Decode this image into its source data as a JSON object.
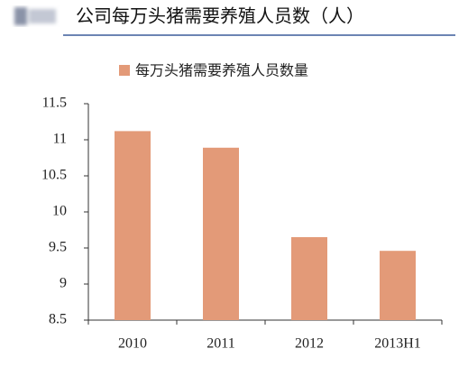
{
  "chart_data": {
    "type": "bar",
    "title": "公司每万头猪需要养殖人员数（人）",
    "categories": [
      "2010",
      "2011",
      "2012",
      "2013H1"
    ],
    "series": [
      {
        "name": "每万头猪需要养殖人员数量",
        "color": "#e39a78",
        "values": [
          11.12,
          10.89,
          9.65,
          9.46
        ]
      }
    ],
    "ylim": [
      8.5,
      11.5
    ],
    "yticks": [
      8.5,
      9,
      9.5,
      10,
      10.5,
      11,
      11.5
    ],
    "grid": false
  }
}
